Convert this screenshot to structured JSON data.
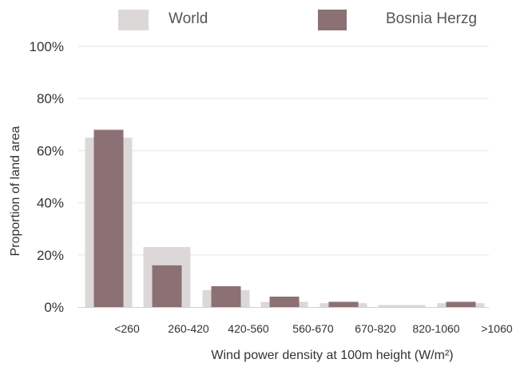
{
  "chart_data": {
    "type": "bar",
    "xlabel": "Wind power density at 100m height (W/m²)",
    "ylabel": "Proportion of land area",
    "ylim": [
      0,
      100
    ],
    "y_ticks": [
      "0%",
      "20%",
      "40%",
      "60%",
      "80%",
      "100%"
    ],
    "categories": [
      "<260",
      "260-420",
      "420-560",
      "560-670",
      "670-820",
      "820-1060",
      ">1060"
    ],
    "series": [
      {
        "name": "World",
        "color": "#ddd8d8",
        "values": [
          65,
          23,
          6.5,
          2,
          1.5,
          0.8,
          1.5
        ]
      },
      {
        "name": "Bosnia Herzg",
        "color": "#8b7074",
        "values": [
          68,
          16,
          8,
          4,
          2,
          0,
          2
        ]
      }
    ],
    "legend_position": "top",
    "grid": true
  }
}
